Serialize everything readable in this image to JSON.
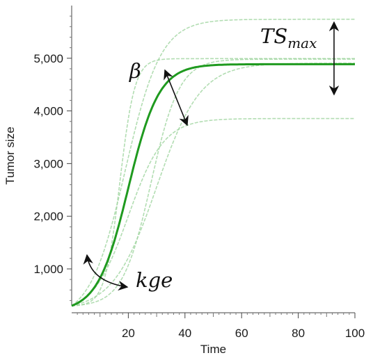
{
  "chart_data": {
    "type": "line",
    "title": "",
    "xlabel": "Time",
    "ylabel": "Tumor size",
    "xlim": [
      0,
      100
    ],
    "ylim": [
      300,
      6000
    ],
    "xticks": [
      20,
      40,
      60,
      80,
      100
    ],
    "xtick_labels": [
      "20",
      "40",
      "60",
      "80",
      "100"
    ],
    "yticks": [
      1000,
      2000,
      3000,
      4000,
      5000
    ],
    "ytick_labels": [
      "1,000",
      "2,000",
      "3,000",
      "4,000",
      "5,000"
    ],
    "grid": false,
    "legend": "none",
    "colors": {
      "main": "#1f9a1f",
      "faint": "#9fd49f",
      "arrow": "#111111"
    },
    "series": [
      {
        "role": "main",
        "ts0": 300,
        "tsmax": 5000,
        "midpoint": 20,
        "rate": 0.185,
        "x": [
          0,
          10,
          20,
          30,
          40,
          60,
          80,
          100
        ],
        "values": [
          300,
          930,
          2600,
          4150,
          4730,
          4990,
          5000,
          5000
        ]
      },
      {
        "role": "faint",
        "ts0": 300,
        "tsmax": 6000,
        "midpoint": 19,
        "rate": 0.16,
        "x": [
          0,
          20,
          40,
          60,
          80,
          100
        ],
        "values": [
          300,
          3100,
          5690,
          5990,
          6000,
          6000
        ]
      },
      {
        "role": "faint",
        "ts0": 300,
        "tsmax": 5000,
        "midpoint": 17,
        "rate": 0.38,
        "x": [
          0,
          20,
          30,
          40,
          60,
          100
        ],
        "values": [
          300,
          3400,
          4970,
          5000,
          5000,
          5000
        ]
      },
      {
        "role": "faint",
        "ts0": 300,
        "tsmax": 4000,
        "midpoint": 20,
        "rate": 0.16,
        "x": [
          0,
          20,
          40,
          60,
          100
        ],
        "values": [
          300,
          2150,
          3850,
          4000,
          4000
        ]
      },
      {
        "role": "faint",
        "ts0": 300,
        "tsmax": 5000,
        "midpoint": 30,
        "rate": 0.13,
        "x": [
          0,
          20,
          30,
          40,
          60,
          100
        ],
        "values": [
          300,
          1200,
          2650,
          4050,
          4910,
          5000
        ]
      },
      {
        "role": "faint",
        "ts0": 300,
        "tsmax": 5000,
        "midpoint": 28,
        "rate": 0.2,
        "x": [
          0,
          20,
          30,
          40,
          60,
          100
        ],
        "values": [
          300,
          1100,
          2900,
          4560,
          5000,
          5000
        ]
      }
    ],
    "annotations": [
      {
        "id": "tsmax",
        "base": "TS",
        "sub": "max"
      },
      {
        "id": "beta",
        "text": "β"
      },
      {
        "id": "kge",
        "text": "kge"
      }
    ]
  }
}
